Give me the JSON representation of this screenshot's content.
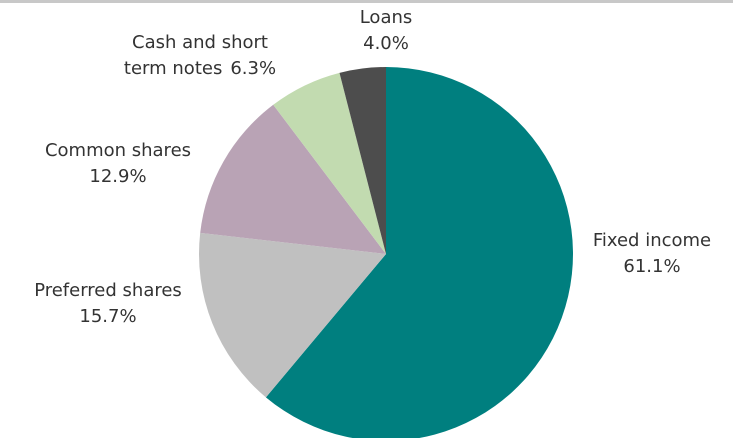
{
  "chart_data": {
    "type": "pie",
    "categories": [
      "Fixed income",
      "Preferred shares",
      "Common shares",
      "Cash and short term notes",
      "Loans"
    ],
    "values": [
      61.1,
      15.7,
      12.9,
      6.3,
      4.0
    ],
    "value_labels": [
      "61.1%",
      "15.7%",
      "12.9%",
      "6.3%",
      "4.0%"
    ],
    "colors": [
      "#007f7f",
      "#c0c0c0",
      "#b9a3b5",
      "#c2dbb0",
      "#4d4d4d"
    ]
  }
}
